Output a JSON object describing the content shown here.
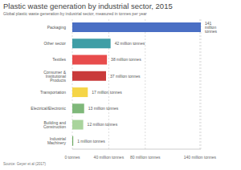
{
  "chart_data": {
    "type": "bar",
    "title": "Plastic waste generation by industrial sector, 2015",
    "subtitle": "Global plastic waste generation by industrial sector, measured in tonnes per year",
    "source": "Source: Geyer et al (2017)",
    "orientation": "horizontal",
    "categories": [
      "Packaging",
      "Other sector",
      "Textiles",
      "Consumer & Institutional Products",
      "Transportation",
      "Electrical/Electronic",
      "Building and Construction",
      "Industrial Machinery"
    ],
    "values": [
      141,
      42,
      38,
      37,
      17,
      13,
      12,
      1
    ],
    "value_labels": [
      "141 million tonnes",
      "42 million tonnes",
      "38 million tonnes",
      "37 million tonnes",
      "17 million tonnes",
      "13 million tonnes",
      "12 million tonnes",
      "1 million tonnes"
    ],
    "data_labels": true,
    "colors": [
      "#4a6fc4",
      "#3e9ea6",
      "#e84c4c",
      "#c93a3a",
      "#f5d547",
      "#7fb87a",
      "#a9d49c",
      "#6aa85e"
    ],
    "xlim": [
      0,
      141
    ],
    "xticks": [
      {
        "value": 0,
        "label": "0 tonnes"
      },
      {
        "value": 40,
        "label": "40 million tonnes"
      },
      {
        "value": 80,
        "label": "80 million tonnes"
      },
      {
        "value": 140,
        "label": "140 million tonnes"
      }
    ],
    "grid": true
  }
}
